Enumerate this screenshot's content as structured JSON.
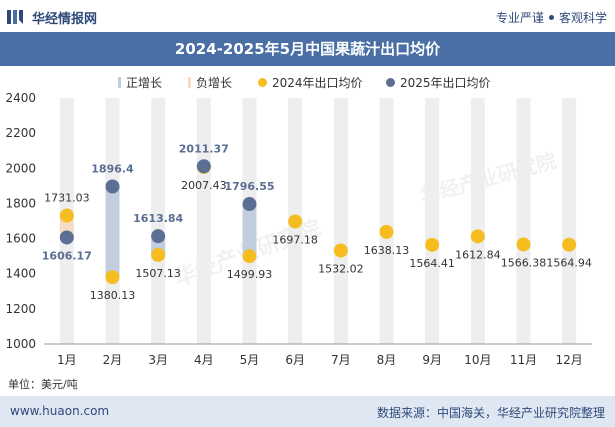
{
  "header": {
    "brand": "华经情报网",
    "slogan_left": "专业严谨",
    "slogan_right": "客观科学"
  },
  "chart_title": "2024-2025年5月中国果蔬汁出口均价",
  "unit_label": "单位：美元/吨",
  "footer": {
    "website": "www.huaon.com",
    "source": "数据来源：中国海关，华经产业研究院整理"
  },
  "watermark": "华经产业研究院",
  "colors": {
    "series_2024": "#f5bd1f",
    "series_2025": "#5b6e94",
    "increase_bar": "#c3cde0",
    "decrease_bar": "#f6dcc6",
    "column_band": "#eeeeee",
    "title_bar": "#4a6fa5"
  },
  "chart_data": {
    "type": "scatter",
    "categories": [
      "1月",
      "2月",
      "3月",
      "4月",
      "5月",
      "6月",
      "7月",
      "8月",
      "9月",
      "10月",
      "11月",
      "12月"
    ],
    "ylim": [
      1000,
      2400
    ],
    "yticks": [
      1000,
      1200,
      1400,
      1600,
      1800,
      2000,
      2200,
      2400
    ],
    "legend": {
      "position": "top",
      "items": [
        {
          "name": "正增长",
          "kind": "bar",
          "color": "#c3cde0"
        },
        {
          "name": "负增长",
          "kind": "bar",
          "color": "#f6dcc6"
        },
        {
          "name": "2024年出口均价",
          "kind": "dot",
          "color": "#f5bd1f"
        },
        {
          "name": "2025年出口均价",
          "kind": "dot",
          "color": "#5b6e94"
        }
      ]
    },
    "series": [
      {
        "name": "2024年出口均价",
        "values": [
          1731.03,
          1380.13,
          1507.13,
          2007.43,
          1499.93,
          1697.18,
          1532.02,
          1638.13,
          1564.41,
          1612.84,
          1566.38,
          1564.94
        ],
        "labels": [
          "1731.03",
          "1380.13",
          "1507.13",
          "2007.43",
          "1499.93",
          "1697.18",
          "1532.02",
          "1638.13",
          "1564.41",
          "1612.84",
          "1566.38",
          "1564.94"
        ]
      },
      {
        "name": "2025年出口均价",
        "values": [
          1606.17,
          1896.4,
          1613.84,
          2011.37,
          1796.55,
          null,
          null,
          null,
          null,
          null,
          null,
          null
        ],
        "labels": [
          "1606.17",
          "1896.4",
          "1613.84",
          "2011.37",
          "1796.55",
          null,
          null,
          null,
          null,
          null,
          null,
          null
        ]
      }
    ],
    "grid": false
  }
}
